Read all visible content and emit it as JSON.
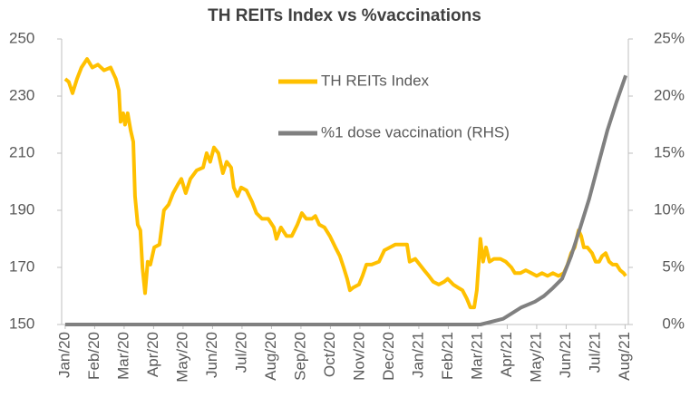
{
  "chart_data": {
    "type": "line",
    "title": "TH REITs Index vs %vaccinations",
    "xlim": [
      -0.12,
      19.11
    ],
    "xticks": [
      {
        "value": 0,
        "label": "Jan/20"
      },
      {
        "value": 1,
        "label": "Feb/20"
      },
      {
        "value": 2,
        "label": "Mar/20"
      },
      {
        "value": 3,
        "label": "Apr/20"
      },
      {
        "value": 4,
        "label": "May/20"
      },
      {
        "value": 5,
        "label": "Jun/20"
      },
      {
        "value": 6,
        "label": "Jul/20"
      },
      {
        "value": 7,
        "label": "Aug/20"
      },
      {
        "value": 8,
        "label": "Sep/20"
      },
      {
        "value": 9,
        "label": "Oct/20"
      },
      {
        "value": 10,
        "label": "Nov/20"
      },
      {
        "value": 11,
        "label": "Dec/20"
      },
      {
        "value": 12,
        "label": "Jan/21"
      },
      {
        "value": 13,
        "label": "Feb/21"
      },
      {
        "value": 14,
        "label": "Mar/21"
      },
      {
        "value": 15,
        "label": "Apr/21"
      },
      {
        "value": 16,
        "label": "May/21"
      },
      {
        "value": 17,
        "label": "Jun/21"
      },
      {
        "value": 18,
        "label": "Jul/21"
      },
      {
        "value": 19,
        "label": "Aug/21"
      }
    ],
    "ylim": [
      150,
      250
    ],
    "yticks": [
      150,
      170,
      190,
      210,
      230,
      250
    ],
    "y2lim": [
      0,
      25
    ],
    "y2ticks": [
      {
        "value": 0,
        "label": "0%"
      },
      {
        "value": 5,
        "label": "5%"
      },
      {
        "value": 10,
        "label": "10%"
      },
      {
        "value": 15,
        "label": "15%"
      },
      {
        "value": 20,
        "label": "20%"
      },
      {
        "value": 25,
        "label": "25%"
      }
    ],
    "legend": "upper center",
    "series": [
      {
        "name": "TH REITs Index",
        "color": "#FFC000",
        "x": [
          0,
          0.12,
          0.25,
          0.4,
          0.55,
          0.74,
          0.92,
          1.11,
          1.32,
          1.54,
          1.72,
          1.82,
          1.88,
          1.97,
          2.03,
          2.12,
          2.22,
          2.31,
          2.37,
          2.46,
          2.55,
          2.62,
          2.71,
          2.8,
          2.89,
          3.02,
          3.2,
          3.35,
          3.51,
          3.66,
          3.82,
          3.94,
          4.09,
          4.25,
          4.46,
          4.68,
          4.8,
          4.92,
          5.05,
          5.2,
          5.35,
          5.48,
          5.63,
          5.72,
          5.85,
          5.97,
          6.15,
          6.34,
          6.49,
          6.68,
          6.89,
          7.08,
          7.17,
          7.32,
          7.51,
          7.69,
          7.88,
          8.03,
          8.18,
          8.37,
          8.49,
          8.62,
          8.8,
          8.98,
          9.17,
          9.32,
          9.45,
          9.57,
          9.66,
          9.78,
          9.97,
          10.09,
          10.22,
          10.4,
          10.65,
          10.83,
          11.02,
          11.2,
          11.42,
          11.6,
          11.69,
          11.88,
          12.03,
          12.18,
          12.34,
          12.49,
          12.68,
          12.86,
          12.98,
          13.17,
          13.32,
          13.48,
          13.63,
          13.75,
          13.88,
          13.97,
          14.09,
          14.18,
          14.28,
          14.4,
          14.55,
          14.77,
          14.95,
          15.14,
          15.26,
          15.45,
          15.63,
          15.82,
          16.0,
          16.18,
          16.37,
          16.55,
          16.74,
          16.92,
          17.05,
          17.17,
          17.29,
          17.42,
          17.51,
          17.6,
          17.72,
          17.88,
          18.0,
          18.12,
          18.22,
          18.34,
          18.46,
          18.58,
          18.71,
          18.83,
          18.95,
          19.02
        ],
        "values": [
          236,
          235,
          231,
          236,
          240,
          243,
          240,
          241,
          239,
          240,
          236,
          232,
          221,
          224,
          220,
          224,
          218,
          214,
          195,
          185,
          183,
          170,
          161,
          172,
          171,
          177,
          178,
          190,
          192,
          196,
          199,
          201,
          196,
          201,
          204,
          205,
          210,
          207,
          212,
          210,
          203,
          207,
          205,
          198,
          195,
          198,
          197,
          193,
          189,
          187,
          187,
          184,
          180,
          184,
          181,
          181,
          185,
          189,
          187,
          187,
          188,
          185,
          184,
          181,
          177,
          174,
          170,
          166,
          162,
          163,
          164,
          167,
          171,
          171,
          172,
          176,
          177,
          178,
          178,
          178,
          172,
          173,
          171,
          169,
          167,
          165,
          164,
          165,
          166,
          164,
          163,
          162,
          159,
          156,
          156,
          162,
          180,
          172,
          177,
          172,
          173,
          173,
          172,
          170,
          168,
          168,
          169,
          168,
          167,
          168,
          167,
          168,
          167,
          168,
          171,
          175,
          177,
          183,
          181,
          177,
          177,
          175,
          172,
          172,
          174,
          175,
          172,
          171,
          171,
          169,
          168,
          167
        ]
      },
      {
        "name": "%1 dose vaccination (RHS)",
        "color": "#808080",
        "axis": "y2",
        "x": [
          0,
          14.09,
          14.4,
          14.86,
          15.17,
          15.48,
          15.94,
          16.25,
          16.55,
          16.86,
          17.17,
          17.48,
          17.78,
          18.09,
          18.4,
          18.71,
          19.02
        ],
        "values": [
          0,
          0,
          0.2,
          0.5,
          1.0,
          1.5,
          2.0,
          2.5,
          3.2,
          4.0,
          6.0,
          8.5,
          11.0,
          14.0,
          17.0,
          19.5,
          21.8
        ]
      }
    ]
  }
}
